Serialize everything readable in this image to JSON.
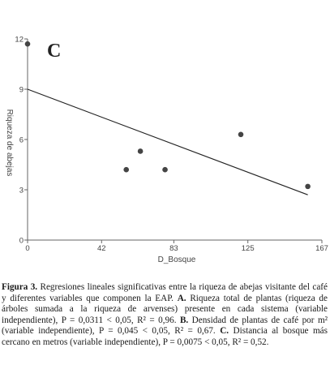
{
  "chart_data": {
    "type": "scatter",
    "panel_label": "C",
    "xlabel": "D_Bosque",
    "ylabel": "Riqueza de abejas",
    "xlim": [
      0,
      167
    ],
    "ylim": [
      0,
      12
    ],
    "x_ticks": [
      "0",
      "42",
      "83",
      "125",
      "167"
    ],
    "y_ticks": [
      "0",
      "3",
      "6",
      "9",
      "12"
    ],
    "points": [
      {
        "x": 0,
        "y": 11.7
      },
      {
        "x": 56,
        "y": 4.2
      },
      {
        "x": 64,
        "y": 5.3
      },
      {
        "x": 78,
        "y": 4.2
      },
      {
        "x": 121,
        "y": 6.3
      },
      {
        "x": 159,
        "y": 3.2
      }
    ],
    "regression_line": {
      "x": [
        0,
        159
      ],
      "y": [
        9.0,
        2.7
      ]
    },
    "grid": false,
    "point_color": "#444444",
    "line_color": "#222222"
  },
  "caption": {
    "label": "Figura 3.",
    "part1": " Regresiones lineales significativas entre la riqueza de abejas visitante del café y diferentes variables que componen la EAP. ",
    "a": "A.",
    "part2": " Riqueza total de plantas (riqueza de árboles sumada a la riqueza de arvenses) presente en cada sistema (variable independiente), P = 0,0311 < 0,05, R² = 0,96. ",
    "b": "B.",
    "part3": " Densidad de plantas de café por m² (variable independiente), P = 0,045 < 0,05, R² = 0,67. ",
    "c": "C.",
    "part4": " Distancia al bosque más cercano en metros (variable independiente), P = 0,0075 < 0,05, R² = 0,52."
  }
}
